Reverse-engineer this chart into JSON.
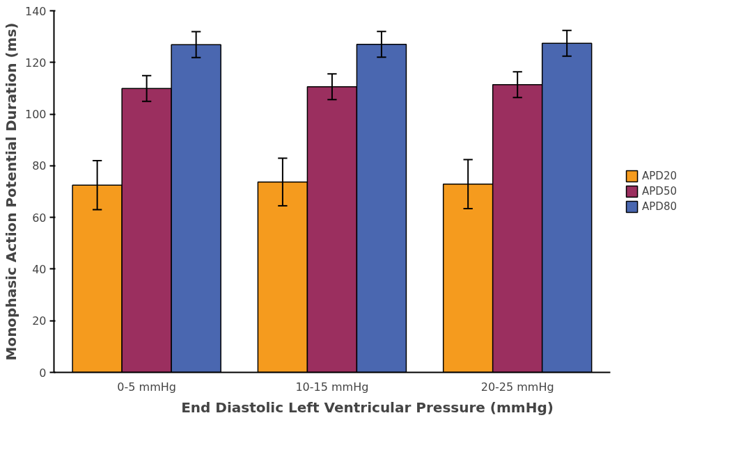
{
  "chart_data": {
    "type": "bar",
    "xlabel": "End Diastolic Left Ventricular Pressure (mmHg)",
    "ylabel": "Monophasic Action Potential Duration (ms)",
    "categories": [
      "0-5 mmHg",
      "10-15 mmHg",
      "20-25 mmHg"
    ],
    "series": [
      {
        "name": "APD20",
        "color": "#f59b1e",
        "values": [
          72.5,
          73.7,
          72.9
        ],
        "errors": [
          9.5,
          9.2,
          9.5
        ]
      },
      {
        "name": "APD50",
        "color": "#9b2f5f",
        "values": [
          109.9,
          110.6,
          111.4
        ],
        "errors": [
          5,
          5,
          5
        ]
      },
      {
        "name": "APD80",
        "color": "#4a67b0",
        "values": [
          126.9,
          127,
          127.4
        ],
        "errors": [
          5,
          5,
          5
        ]
      }
    ],
    "ylim": [
      0,
      140
    ],
    "yticks": [
      0,
      20,
      40,
      60,
      80,
      100,
      120,
      140
    ],
    "grid": false,
    "legend": "right"
  }
}
